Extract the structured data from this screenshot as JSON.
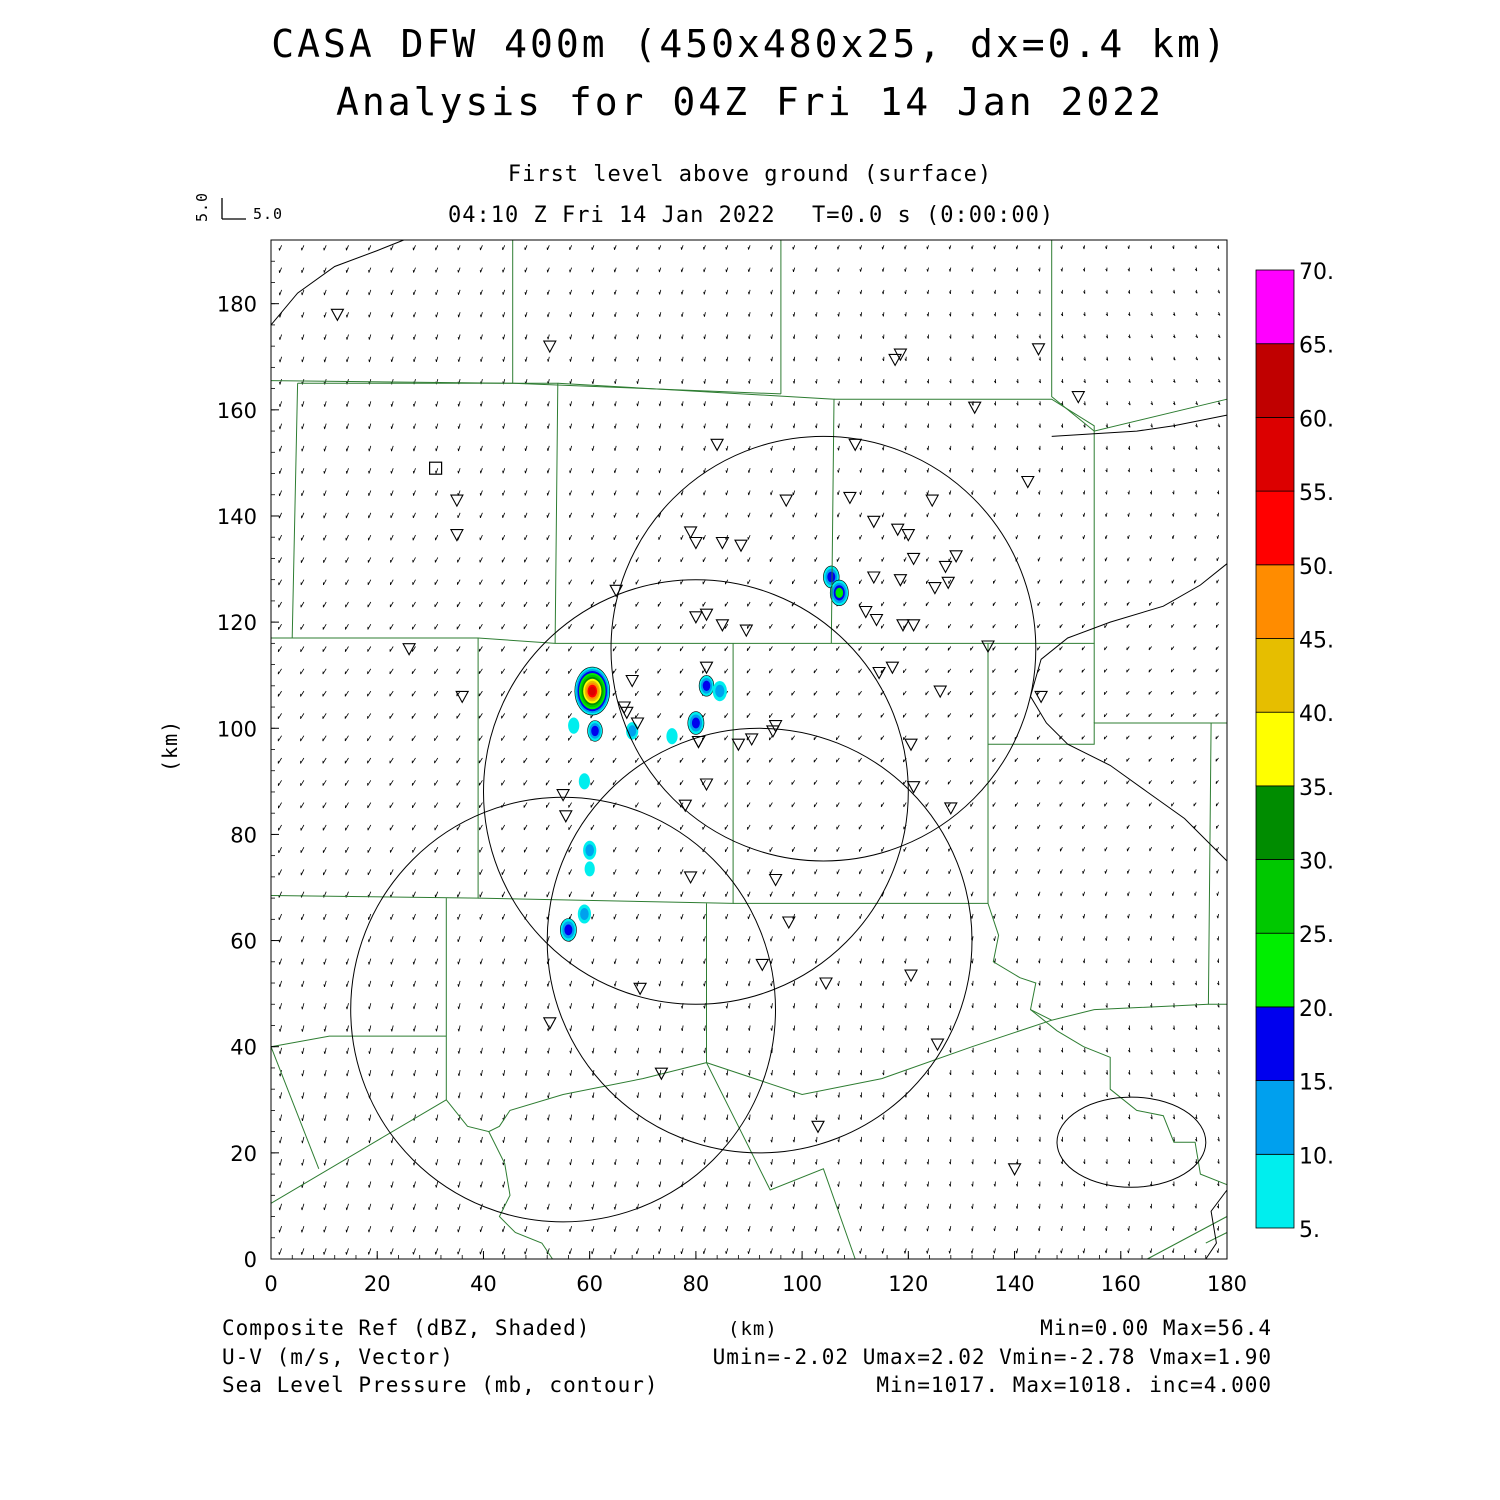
{
  "header": {
    "title": "CASA DFW 400m (450x480x25, dx=0.4 km)",
    "subtitle": "Analysis for 04Z Fri 14 Jan 2022",
    "level": "First level above ground (surface)",
    "valid": "04:10 Z Fri 14 Jan 2022",
    "time": "T=0.0 s (0:00:00)",
    "vector_ref_x": "5.0",
    "vector_ref_y": "5.0"
  },
  "footer": {
    "field1": "Composite Ref (dBZ, Shaded)",
    "field2": "U-V (m/s, Vector)",
    "field3": "Sea Level Pressure (mb, contour)",
    "units": "(km)",
    "stats1": "Min=0.00 Max=56.4",
    "stats2": "Umin=-2.02 Umax=2.02 Vmin=-2.78 Vmax=1.90",
    "stats3": "Min=1017. Max=1018. inc=4.000"
  },
  "chart_data": {
    "type": "heatmap",
    "xlabel": "",
    "ylabel": "(km)",
    "xlim": [
      0,
      180
    ],
    "ylim": [
      0,
      192
    ],
    "x_ticks": [
      "0",
      "20",
      "40",
      "60",
      "80",
      "100",
      "120",
      "140",
      "160",
      "180"
    ],
    "y_ticks": [
      "0",
      "20",
      "40",
      "60",
      "80",
      "100",
      "120",
      "140",
      "160",
      "180"
    ],
    "colorbar": {
      "labels": [
        "5.",
        "10.",
        "15.",
        "20.",
        "25.",
        "30.",
        "35.",
        "40.",
        "45.",
        "50.",
        "55.",
        "60.",
        "65.",
        "70."
      ],
      "colors": [
        "#00eeee",
        "#00a0ee",
        "#0000ee",
        "#00ee00",
        "#00c800",
        "#008c00",
        "#ffff00",
        "#e6be00",
        "#ff8c00",
        "#ff0000",
        "#dc0000",
        "#c00000",
        "#ff00ff"
      ]
    },
    "radar_rings": [
      {
        "cx": 104,
        "cy": 115,
        "r": 40
      },
      {
        "cx": 80,
        "cy": 88,
        "r": 40
      },
      {
        "cx": 92,
        "cy": 60,
        "r": 40
      },
      {
        "cx": 55,
        "cy": 47,
        "r": 40
      }
    ],
    "pressure_contours": [
      {
        "cx": 162,
        "cy": 22,
        "rx": 14,
        "ry": 8.5
      }
    ],
    "echoes": [
      {
        "x": 60.5,
        "y": 107,
        "dbz": 56
      },
      {
        "x": 61,
        "y": 99.5,
        "dbz": 15
      },
      {
        "x": 57,
        "y": 100.5,
        "dbz": 8
      },
      {
        "x": 68,
        "y": 99.5,
        "dbz": 10
      },
      {
        "x": 82,
        "y": 108,
        "dbz": 15
      },
      {
        "x": 84.5,
        "y": 107,
        "dbz": 14
      },
      {
        "x": 80,
        "y": 101,
        "dbz": 18
      },
      {
        "x": 75.5,
        "y": 98.5,
        "dbz": 8
      },
      {
        "x": 105.5,
        "y": 128.5,
        "dbz": 17
      },
      {
        "x": 107,
        "y": 125.5,
        "dbz": 22
      },
      {
        "x": 59,
        "y": 90,
        "dbz": 8
      },
      {
        "x": 60,
        "y": 77,
        "dbz": 12
      },
      {
        "x": 60,
        "y": 73.5,
        "dbz": 6
      },
      {
        "x": 59,
        "y": 65,
        "dbz": 12
      },
      {
        "x": 56,
        "y": 62,
        "dbz": 18
      }
    ],
    "stations": [
      [
        12.5,
        178
      ],
      [
        52.5,
        172
      ],
      [
        35,
        143
      ],
      [
        35,
        136.5
      ],
      [
        26,
        115
      ],
      [
        36,
        106
      ],
      [
        65,
        126
      ],
      [
        68,
        109
      ],
      [
        66.5,
        104
      ],
      [
        67,
        103
      ],
      [
        69,
        101
      ],
      [
        79,
        137
      ],
      [
        80,
        135
      ],
      [
        85,
        135
      ],
      [
        88.5,
        134.5
      ],
      [
        84,
        153.5
      ],
      [
        97,
        143
      ],
      [
        80,
        121
      ],
      [
        82,
        121.5
      ],
      [
        85,
        119.5
      ],
      [
        89.5,
        118.5
      ],
      [
        82,
        111.5
      ],
      [
        110,
        153.5
      ],
      [
        109,
        143.5
      ],
      [
        113.5,
        139
      ],
      [
        118,
        137.5
      ],
      [
        120,
        136.5
      ],
      [
        124.5,
        143
      ],
      [
        121,
        132
      ],
      [
        127,
        130.5
      ],
      [
        129,
        132.5
      ],
      [
        127.5,
        127.5
      ],
      [
        125,
        126.5
      ],
      [
        113.5,
        128.5
      ],
      [
        118.5,
        128
      ],
      [
        112,
        122
      ],
      [
        114,
        120.5
      ],
      [
        119,
        119.5
      ],
      [
        121,
        119.5
      ],
      [
        117,
        111.5
      ],
      [
        114.5,
        110.5
      ],
      [
        126,
        107
      ],
      [
        135,
        115.5
      ],
      [
        142.5,
        146.5
      ],
      [
        132.5,
        160.5
      ],
      [
        117.5,
        169.5
      ],
      [
        118.5,
        170.5
      ],
      [
        144.5,
        171.5
      ],
      [
        152,
        162.5
      ],
      [
        145,
        106
      ],
      [
        95,
        100.5
      ],
      [
        94.5,
        99.5
      ],
      [
        90.5,
        98
      ],
      [
        88,
        97
      ],
      [
        80.5,
        97.5
      ],
      [
        80.5,
        97.5
      ],
      [
        82,
        89.5
      ],
      [
        78,
        85.5
      ],
      [
        55,
        87.5
      ],
      [
        55.5,
        83.5
      ],
      [
        79,
        72
      ],
      [
        95,
        71.5
      ],
      [
        97.5,
        63.5
      ],
      [
        92.5,
        55.5
      ],
      [
        69.5,
        51
      ],
      [
        52.5,
        44.5
      ],
      [
        73.5,
        35
      ],
      [
        103,
        25
      ],
      [
        104.5,
        52
      ],
      [
        120.5,
        53.5
      ],
      [
        125.5,
        40.5
      ],
      [
        128,
        85
      ],
      [
        121,
        89
      ],
      [
        120.5,
        97
      ],
      [
        140,
        17
      ]
    ],
    "station_square": [
      31,
      149
    ],
    "counties": [
      [
        [
          0,
          165.5
        ],
        [
          45.5,
          165
        ],
        [
          96,
          163
        ]
      ],
      [
        [
          96,
          192
        ],
        [
          96,
          163
        ]
      ],
      [
        [
          45.5,
          192
        ],
        [
          45.5,
          165
        ]
      ],
      [
        [
          147,
          192
        ],
        [
          147,
          162.5
        ],
        [
          155,
          156
        ],
        [
          180,
          162
        ]
      ],
      [
        [
          5,
          165
        ],
        [
          4,
          117
        ],
        [
          0,
          117
        ]
      ],
      [
        [
          5,
          165
        ],
        [
          54,
          165
        ],
        [
          53.5,
          116
        ]
      ],
      [
        [
          54,
          165
        ],
        [
          106,
          162
        ],
        [
          105.5,
          116
        ]
      ],
      [
        [
          106,
          162
        ],
        [
          147,
          162
        ],
        [
          155,
          157
        ],
        [
          155,
          116
        ],
        [
          135,
          116
        ],
        [
          105.5,
          116
        ],
        [
          53.5,
          116
        ],
        [
          39,
          117
        ],
        [
          4,
          117
        ]
      ],
      [
        [
          39,
          117
        ],
        [
          39,
          68
        ],
        [
          0,
          68.5
        ]
      ],
      [
        [
          39,
          68
        ],
        [
          87,
          67
        ],
        [
          87,
          116
        ]
      ],
      [
        [
          87,
          67
        ],
        [
          135,
          67
        ],
        [
          135,
          116
        ]
      ],
      [
        [
          135,
          97
        ],
        [
          155,
          97
        ],
        [
          155,
          101
        ],
        [
          177,
          101
        ],
        [
          176.5,
          48
        ],
        [
          180,
          48
        ]
      ],
      [
        [
          155,
          101
        ],
        [
          155,
          116
        ]
      ],
      [
        [
          177,
          101
        ],
        [
          180,
          101
        ]
      ],
      [
        [
          135,
          67
        ],
        [
          137,
          61
        ],
        [
          136,
          56
        ],
        [
          141,
          53
        ],
        [
          144,
          52
        ],
        [
          143,
          47
        ],
        [
          147,
          45
        ],
        [
          155,
          47
        ],
        [
          176.5,
          48
        ]
      ],
      [
        [
          143,
          47
        ],
        [
          148,
          43
        ],
        [
          153,
          40
        ],
        [
          158,
          38
        ],
        [
          158,
          32
        ],
        [
          163,
          28
        ],
        [
          168,
          27
        ],
        [
          170,
          22
        ],
        [
          174,
          22
        ],
        [
          175,
          16
        ],
        [
          180,
          14
        ]
      ],
      [
        [
          33,
          68
        ],
        [
          33,
          30
        ],
        [
          0,
          10.5
        ]
      ],
      [
        [
          33,
          42
        ],
        [
          11,
          42
        ],
        [
          0,
          40
        ]
      ],
      [
        [
          33,
          30
        ],
        [
          37,
          25
        ],
        [
          41,
          24
        ],
        [
          43,
          25
        ],
        [
          45,
          28
        ],
        [
          55,
          31
        ],
        [
          70,
          34
        ],
        [
          82,
          37
        ]
      ],
      [
        [
          41,
          24
        ],
        [
          44,
          18
        ],
        [
          45,
          12
        ],
        [
          43,
          8
        ],
        [
          46,
          5
        ],
        [
          51,
          3
        ],
        [
          53,
          0
        ]
      ],
      [
        [
          82,
          67
        ],
        [
          82,
          37
        ],
        [
          88,
          25
        ],
        [
          94,
          13
        ],
        [
          104,
          17
        ],
        [
          110,
          0
        ]
      ],
      [
        [
          82,
          37
        ],
        [
          100,
          31
        ],
        [
          115,
          34
        ],
        [
          132,
          40
        ],
        [
          147,
          45
        ]
      ],
      [
        [
          0,
          40
        ],
        [
          9,
          17
        ]
      ],
      [
        [
          180,
          8
        ],
        [
          165,
          0
        ]
      ],
      [
        [
          176,
          3
        ],
        [
          180,
          5
        ]
      ]
    ],
    "state_lines": [
      [
        [
          0,
          176
        ],
        [
          5,
          182
        ],
        [
          12,
          187
        ],
        [
          20,
          190
        ],
        [
          25,
          192
        ]
      ],
      [
        [
          180,
          159
        ],
        [
          170,
          157
        ],
        [
          163,
          156
        ],
        [
          155,
          155.5
        ],
        [
          147,
          155
        ]
      ],
      [
        [
          180,
          131
        ],
        [
          175,
          127
        ],
        [
          168,
          123
        ],
        [
          158,
          120
        ],
        [
          150,
          117
        ],
        [
          145,
          113
        ],
        [
          143,
          106
        ],
        [
          146,
          101
        ],
        [
          150,
          97
        ],
        [
          158,
          93
        ],
        [
          165,
          88
        ],
        [
          172,
          83
        ],
        [
          180,
          75
        ]
      ],
      [
        [
          180,
          13
        ],
        [
          177,
          9
        ],
        [
          178,
          3
        ],
        [
          176,
          0
        ]
      ]
    ]
  }
}
